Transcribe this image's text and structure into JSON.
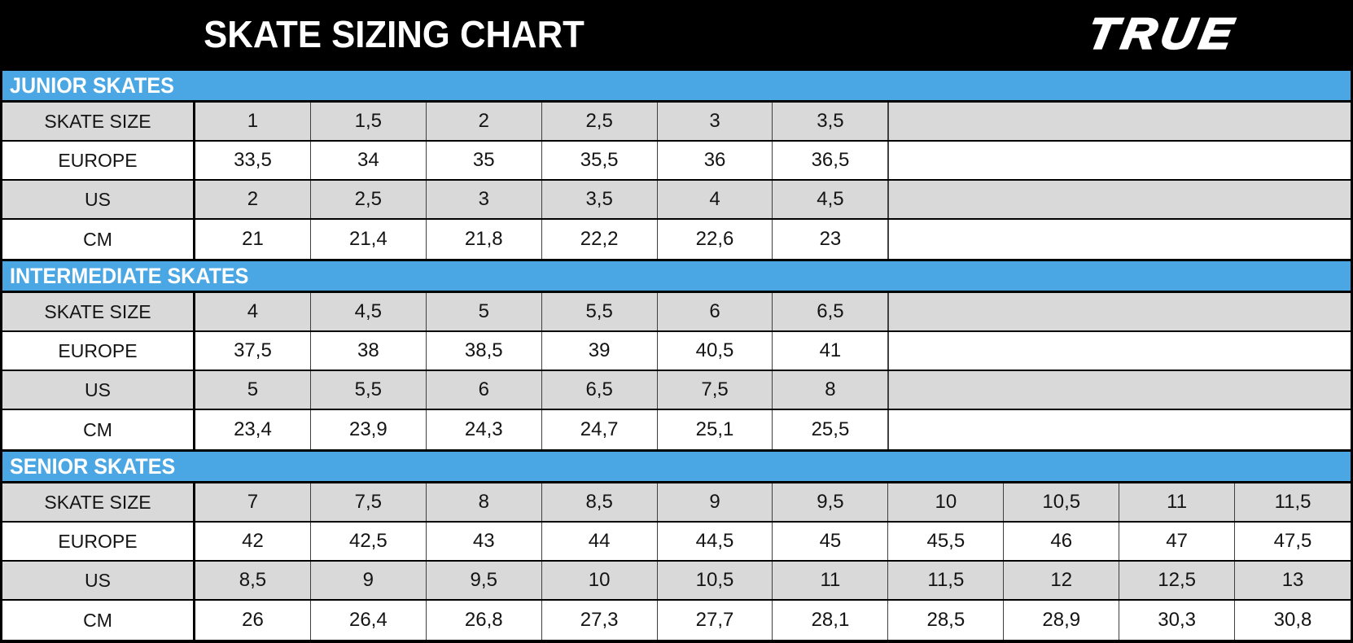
{
  "header": {
    "title": "SKATE SIZING CHART",
    "brand": "TRUE"
  },
  "colors": {
    "section_blue": "#4BA7E4",
    "row_gray": "#D9D9D9",
    "header_black": "#000000"
  },
  "columns_total": 10,
  "sections": [
    {
      "label": "JUNIOR SKATES",
      "rows": [
        {
          "label": "SKATE SIZE",
          "values": [
            "1",
            "1,5",
            "2",
            "2,5",
            "3",
            "3,5"
          ]
        },
        {
          "label": "EUROPE",
          "values": [
            "33,5",
            "34",
            "35",
            "35,5",
            "36",
            "36,5"
          ]
        },
        {
          "label": "US",
          "values": [
            "2",
            "2,5",
            "3",
            "3,5",
            "4",
            "4,5"
          ]
        },
        {
          "label": "CM",
          "values": [
            "21",
            "21,4",
            "21,8",
            "22,2",
            "22,6",
            "23"
          ]
        }
      ]
    },
    {
      "label": "INTERMEDIATE SKATES",
      "rows": [
        {
          "label": "SKATE SIZE",
          "values": [
            "4",
            "4,5",
            "5",
            "5,5",
            "6",
            "6,5"
          ]
        },
        {
          "label": "EUROPE",
          "values": [
            "37,5",
            "38",
            "38,5",
            "39",
            "40,5",
            "41"
          ]
        },
        {
          "label": "US",
          "values": [
            "5",
            "5,5",
            "6",
            "6,5",
            "7,5",
            "8"
          ]
        },
        {
          "label": "CM",
          "values": [
            "23,4",
            "23,9",
            "24,3",
            "24,7",
            "25,1",
            "25,5"
          ]
        }
      ]
    },
    {
      "label": "SENIOR SKATES",
      "rows": [
        {
          "label": "SKATE SIZE",
          "values": [
            "7",
            "7,5",
            "8",
            "8,5",
            "9",
            "9,5",
            "10",
            "10,5",
            "11",
            "11,5"
          ]
        },
        {
          "label": "EUROPE",
          "values": [
            "42",
            "42,5",
            "43",
            "44",
            "44,5",
            "45",
            "45,5",
            "46",
            "47",
            "47,5"
          ]
        },
        {
          "label": "US",
          "values": [
            "8,5",
            "9",
            "9,5",
            "10",
            "10,5",
            "11",
            "11,5",
            "12",
            "12,5",
            "13"
          ]
        },
        {
          "label": "CM",
          "values": [
            "26",
            "26,4",
            "26,8",
            "27,3",
            "27,7",
            "28,1",
            "28,5",
            "28,9",
            "30,3",
            "30,8"
          ]
        }
      ]
    }
  ],
  "chart_data": {
    "type": "table",
    "title": "SKATE SIZING CHART",
    "tables": [
      {
        "section": "JUNIOR SKATES",
        "row_headers": [
          "SKATE SIZE",
          "EUROPE",
          "US",
          "CM"
        ],
        "skate_size": [
          "1",
          "1,5",
          "2",
          "2,5",
          "3",
          "3,5"
        ],
        "europe": [
          "33,5",
          "34",
          "35",
          "35,5",
          "36",
          "36,5"
        ],
        "us": [
          "2",
          "2,5",
          "3",
          "3,5",
          "4",
          "4,5"
        ],
        "cm": [
          "21",
          "21,4",
          "21,8",
          "22,2",
          "22,6",
          "23"
        ]
      },
      {
        "section": "INTERMEDIATE SKATES",
        "row_headers": [
          "SKATE SIZE",
          "EUROPE",
          "US",
          "CM"
        ],
        "skate_size": [
          "4",
          "4,5",
          "5",
          "5,5",
          "6",
          "6,5"
        ],
        "europe": [
          "37,5",
          "38",
          "38,5",
          "39",
          "40,5",
          "41"
        ],
        "us": [
          "5",
          "5,5",
          "6",
          "6,5",
          "7,5",
          "8"
        ],
        "cm": [
          "23,4",
          "23,9",
          "24,3",
          "24,7",
          "25,1",
          "25,5"
        ]
      },
      {
        "section": "SENIOR SKATES",
        "row_headers": [
          "SKATE SIZE",
          "EUROPE",
          "US",
          "CM"
        ],
        "skate_size": [
          "7",
          "7,5",
          "8",
          "8,5",
          "9",
          "9,5",
          "10",
          "10,5",
          "11",
          "11,5"
        ],
        "europe": [
          "42",
          "42,5",
          "43",
          "44",
          "44,5",
          "45",
          "45,5",
          "46",
          "47",
          "47,5"
        ],
        "us": [
          "8,5",
          "9",
          "9,5",
          "10",
          "10,5",
          "11",
          "11,5",
          "12",
          "12,5",
          "13"
        ],
        "cm": [
          "26",
          "26,4",
          "26,8",
          "27,3",
          "27,7",
          "28,1",
          "28,5",
          "28,9",
          "30,3",
          "30,8"
        ]
      }
    ]
  }
}
